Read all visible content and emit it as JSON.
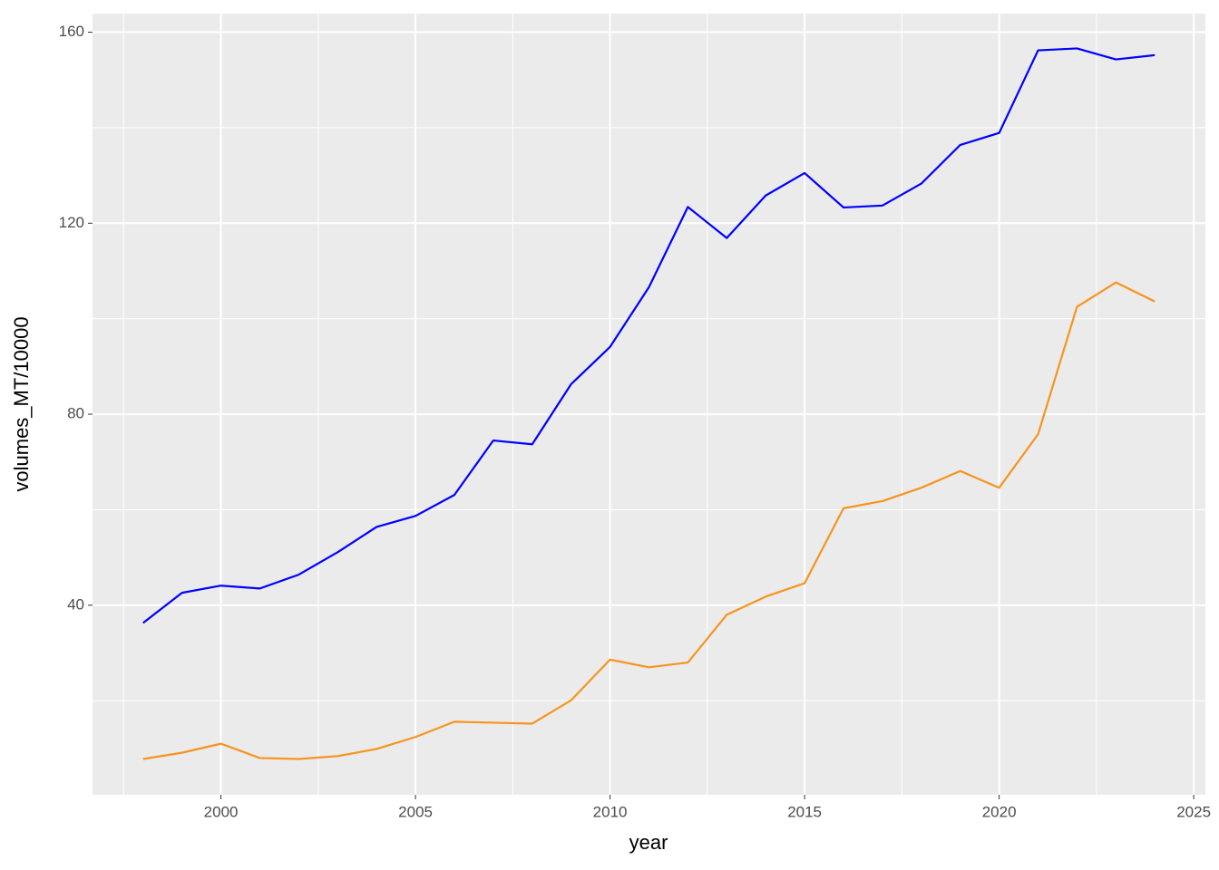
{
  "chart_data": {
    "type": "line",
    "x_label": "year",
    "y_label": "volumes_MT/10000",
    "x": [
      1998,
      1999,
      2000,
      2001,
      2002,
      2003,
      2004,
      2005,
      2006,
      2007,
      2008,
      2009,
      2010,
      2011,
      2012,
      2013,
      2014,
      2015,
      2016,
      2017,
      2018,
      2019,
      2020,
      2021,
      2022,
      2023,
      2024
    ],
    "series": [
      {
        "color": "#0000ff",
        "values": [
          36.3,
          42.6,
          44.1,
          43.5,
          46.4,
          51.1,
          56.4,
          58.7,
          63.1,
          74.5,
          73.7,
          86.3,
          94.1,
          106.6,
          123.4,
          116.9,
          125.8,
          130.5,
          123.3,
          123.7,
          128.3,
          136.4,
          138.9,
          156.2,
          156.6,
          154.3,
          155.2
        ]
      },
      {
        "color": "#f7941d",
        "values": [
          7.8,
          9.1,
          11.0,
          8.0,
          7.8,
          8.4,
          9.9,
          12.4,
          15.6,
          15.4,
          15.2,
          20.1,
          28.6,
          27.0,
          28.0,
          38.0,
          41.8,
          44.6,
          60.3,
          61.8,
          64.6,
          68.1,
          64.6,
          75.8,
          102.5,
          107.6,
          103.6
        ]
      }
    ],
    "xlim": [
      1996.7,
      2025.3
    ],
    "ylim": [
      0.3,
      163.9
    ],
    "xticks": [
      2000,
      2005,
      2010,
      2015,
      2020,
      2025
    ],
    "yticks": [
      40,
      80,
      120,
      160
    ],
    "grid": true
  }
}
